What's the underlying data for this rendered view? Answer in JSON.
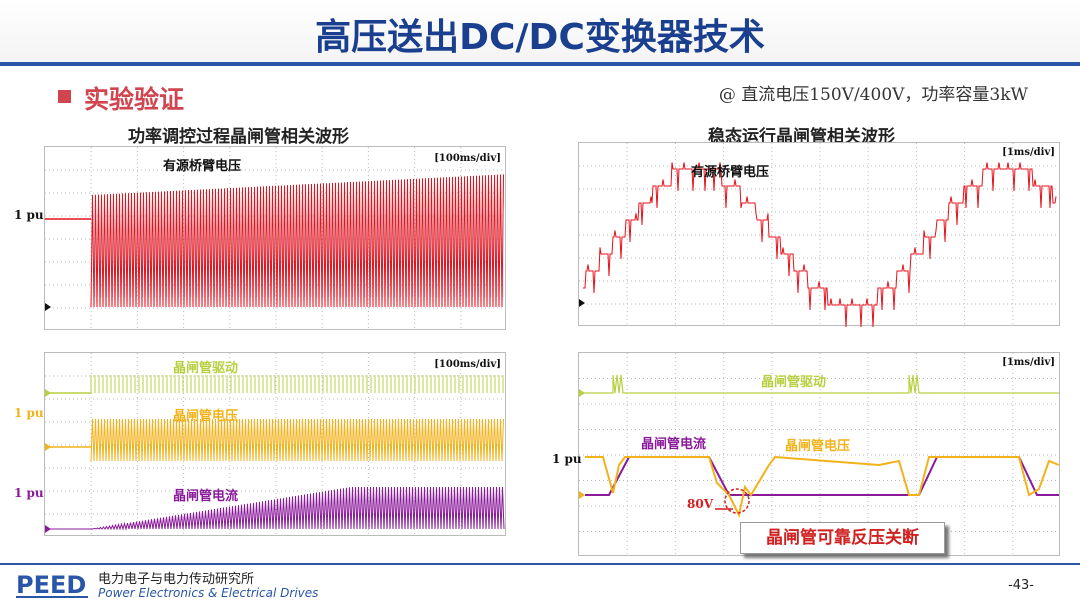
{
  "slide": {
    "title": "高压送出DC/DC变换器技术",
    "section": "实验验证",
    "condition": "@ 直流电压150V/400V，功率容量3kW",
    "page_number": "-43-"
  },
  "panels": {
    "left_title": "功率调控过程晶闸管相关波形",
    "right_title": "稳态运行晶闸管相关波形",
    "top_left": {
      "scale": "[100ms/div]",
      "signal": "有源桥臂电压",
      "pu": "1 pu"
    },
    "top_right": {
      "scale": "[1ms/div]",
      "signal": "有源桥臂电压"
    },
    "bottom_left": {
      "scale": "[100ms/div]",
      "drive": "晶闸管驱动",
      "voltage": "晶闸管电压",
      "current": "晶闸管电流",
      "pu_voltage": "1 pu",
      "pu_current": "1 pu"
    },
    "bottom_right": {
      "scale": "[1ms/div]",
      "drive": "晶闸管驱动",
      "current": "晶闸管电流",
      "voltage": "晶闸管电压",
      "pu": "1 pu",
      "v80": "80V",
      "callout": "晶闸管可靠反压关断"
    }
  },
  "footer": {
    "logo_text": "PEED",
    "institute_cn": "电力电子与电力传动研究所",
    "institute_en": "Power Electronics & Electrical Drives"
  },
  "colors": {
    "title": "#1a3f8f",
    "accent_red": "#d04550",
    "wave_red": "#e8101a",
    "wave_green": "#b8d040",
    "wave_yellow": "#f2b21a",
    "wave_purple": "#8a1a9a"
  }
}
